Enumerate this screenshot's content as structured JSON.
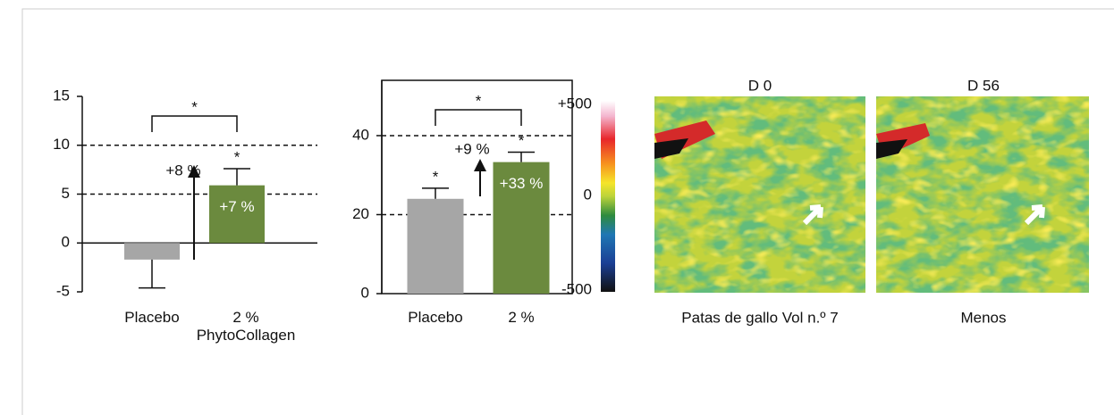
{
  "chart_data": [
    {
      "type": "bar",
      "categories": [
        "Placebo",
        "2 %\nPhytoCollagen"
      ],
      "values": [
        -1.7,
        5.9
      ],
      "errors": [
        2.9,
        1.7
      ],
      "colors": [
        "#a6a6a6",
        "#6b8a3e"
      ],
      "ylim": [
        -5,
        15
      ],
      "yticks": [
        -5,
        0,
        5,
        10,
        15
      ],
      "grid": true,
      "significance": "*",
      "bar_markers": [
        null,
        "*"
      ],
      "inner_labels": [
        null,
        "+7 %"
      ],
      "change_label": "+8 %"
    },
    {
      "type": "bar",
      "categories": [
        "Placebo",
        "2 %"
      ],
      "values": [
        24,
        33.3
      ],
      "errors": [
        2.7,
        2.5
      ],
      "colors": [
        "#a6a6a6",
        "#6b8a3e"
      ],
      "ylim": [
        0,
        54
      ],
      "yticks": [
        0,
        20,
        40
      ],
      "grid": true,
      "significance": "*",
      "bar_markers": [
        "*",
        "*"
      ],
      "inner_labels": [
        null,
        "+33 %"
      ],
      "change_label": "+9 %"
    }
  ],
  "heatmap_panel": {
    "colorbar_labels": [
      "+500",
      "0",
      "-500"
    ],
    "panel_titles": [
      "D 0",
      "D 56"
    ],
    "captions": [
      "Patas de gallo Vol n.º 7",
      "Menos"
    ]
  }
}
